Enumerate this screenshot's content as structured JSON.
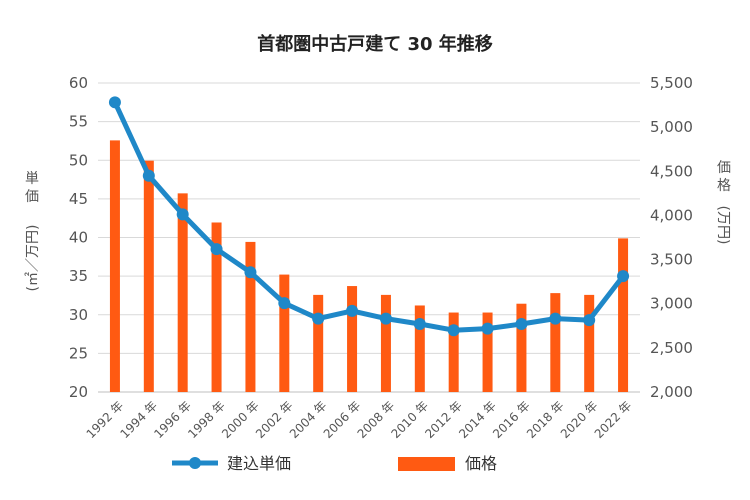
{
  "chart_data": {
    "type": "bar+line",
    "title": "首都圏中古戸建て 30 年推移",
    "categories": [
      "1992 年",
      "1994 年",
      "1996 年",
      "1998 年",
      "2000 年",
      "2002 年",
      "2004 年",
      "2006 年",
      "2008 年",
      "2010 年",
      "2012 年",
      "2014 年",
      "2016 年",
      "2018 年",
      "2020 年",
      "2022 年"
    ],
    "series": [
      {
        "name": "建込単価",
        "type": "line",
        "axis": "left",
        "color": "#1f88c8",
        "values": [
          57.5,
          48.0,
          43.0,
          38.5,
          35.5,
          31.5,
          29.5,
          30.5,
          29.5,
          28.8,
          28.0,
          28.2,
          28.8,
          29.5,
          29.3,
          35.0
        ]
      },
      {
        "name": "価格",
        "type": "bar",
        "axis": "right",
        "color": "#ff5a12",
        "values": [
          4850,
          4620,
          4250,
          3920,
          3700,
          3330,
          3100,
          3200,
          3100,
          2980,
          2900,
          2900,
          3000,
          3120,
          3100,
          3740
        ]
      }
    ],
    "left_axis": {
      "label_chars": [
        "単",
        "価",
        "(㎡／万円)"
      ],
      "ylim": [
        20,
        60
      ],
      "ticks": [
        "20",
        "25",
        "30",
        "35",
        "40",
        "45",
        "50",
        "55",
        "60"
      ]
    },
    "right_axis": {
      "label_chars": [
        "価",
        "格",
        "(万円)"
      ],
      "ylim": [
        2000,
        5500
      ],
      "ticks": [
        "2,000",
        "2,500",
        "3,000",
        "3,500",
        "4,000",
        "4,500",
        "5,000",
        "5,500"
      ]
    },
    "grid": true,
    "legend_position": "bottom"
  }
}
